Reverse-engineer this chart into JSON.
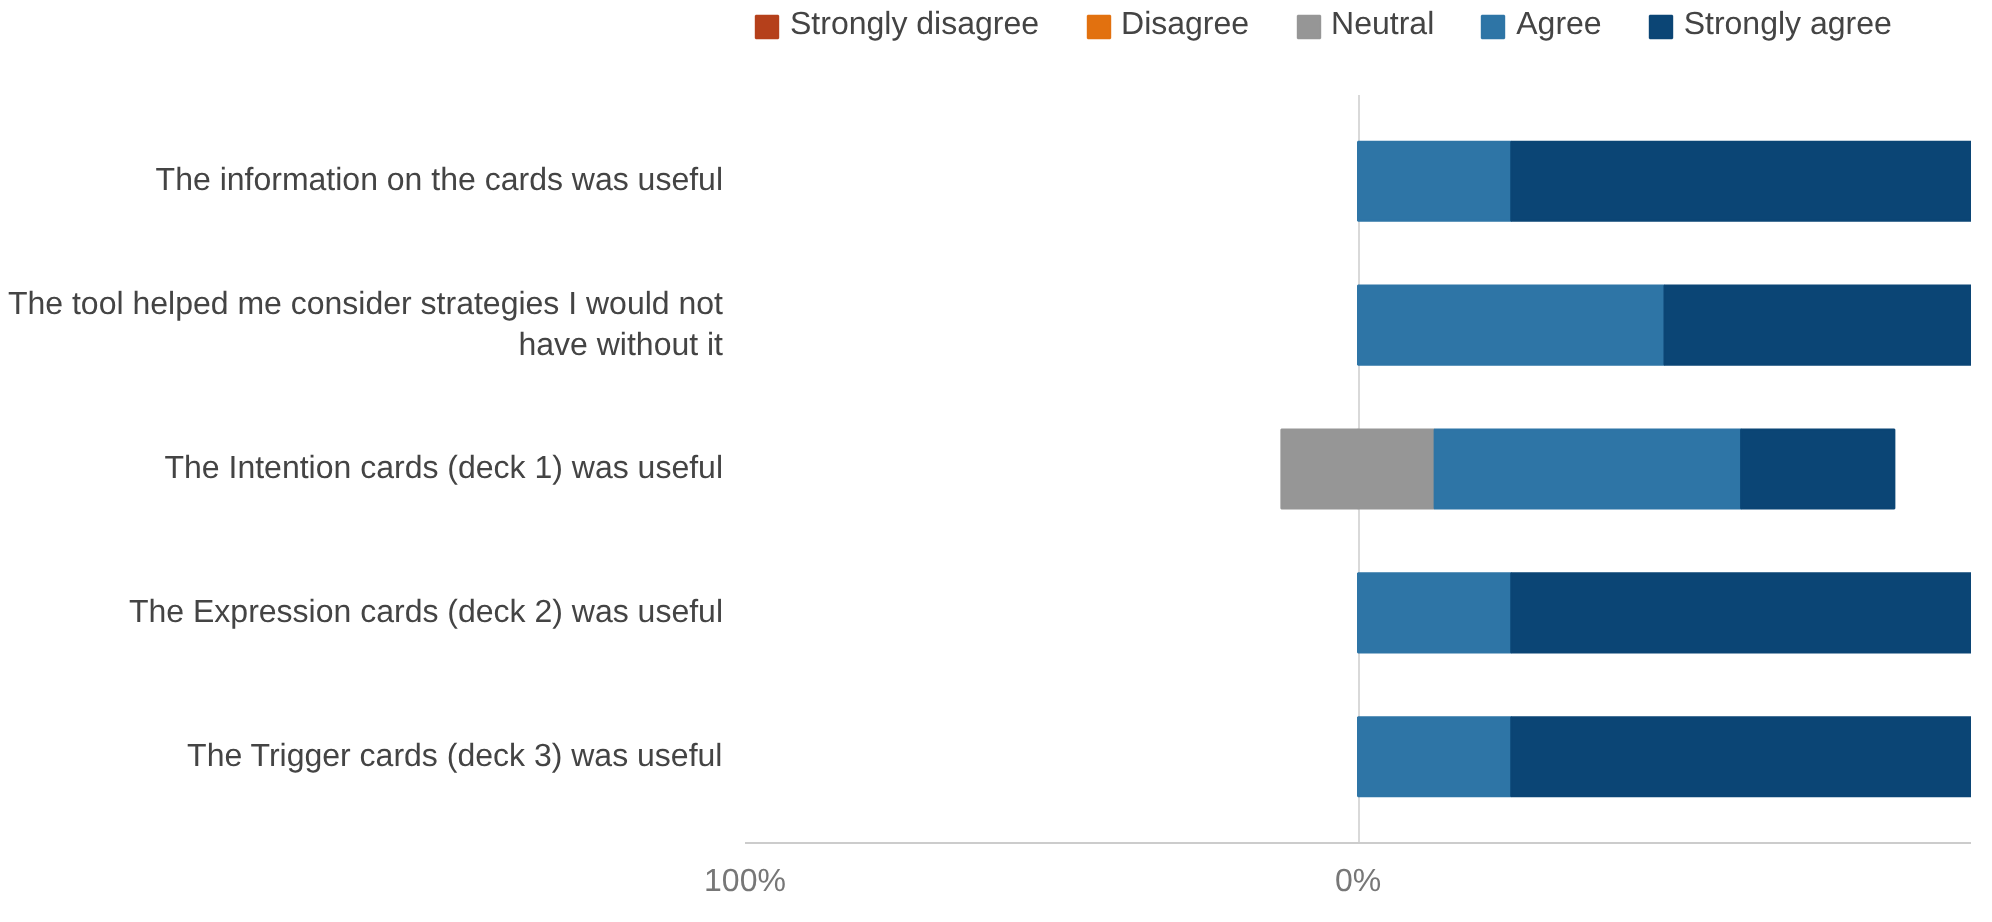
{
  "chart_data": {
    "type": "bar",
    "orientation": "horizontal",
    "stacked": true,
    "categories": [
      "The information on the cards was useful",
      "The tool helped me consider strategies I would not have without it",
      "The Intention cards (deck 1) was useful",
      "The Expression cards (deck 2) was useful",
      "The Trigger cards (deck 3) was useful"
    ],
    "series": [
      {
        "name": "Strongly disagree",
        "color": "#b5401b",
        "values": [
          0,
          0,
          0,
          0,
          0
        ]
      },
      {
        "name": "Disagree",
        "color": "#e2710f",
        "values": [
          0,
          0,
          0,
          0,
          0
        ]
      },
      {
        "color": "#969696",
        "values": [
          0,
          0,
          -12.5,
          0,
          0
        ]
      },
      {
        "name": "Neutral",
        "color": "#969696",
        "values": [
          0,
          0,
          12.5,
          0,
          0
        ]
      },
      {
        "name": "Agree",
        "color": "#2e75a6",
        "values": [
          25,
          50,
          50,
          25,
          25
        ]
      },
      {
        "name": "Strongly agree",
        "color": "#0b4575",
        "values": [
          75,
          50,
          25,
          75,
          75
        ]
      }
    ],
    "xlim": [
      -100,
      100
    ],
    "xticks": [
      {
        "value": -100,
        "label": "100%"
      },
      {
        "value": 0,
        "label": "0%"
      }
    ],
    "grid": "x",
    "legend": "top"
  }
}
